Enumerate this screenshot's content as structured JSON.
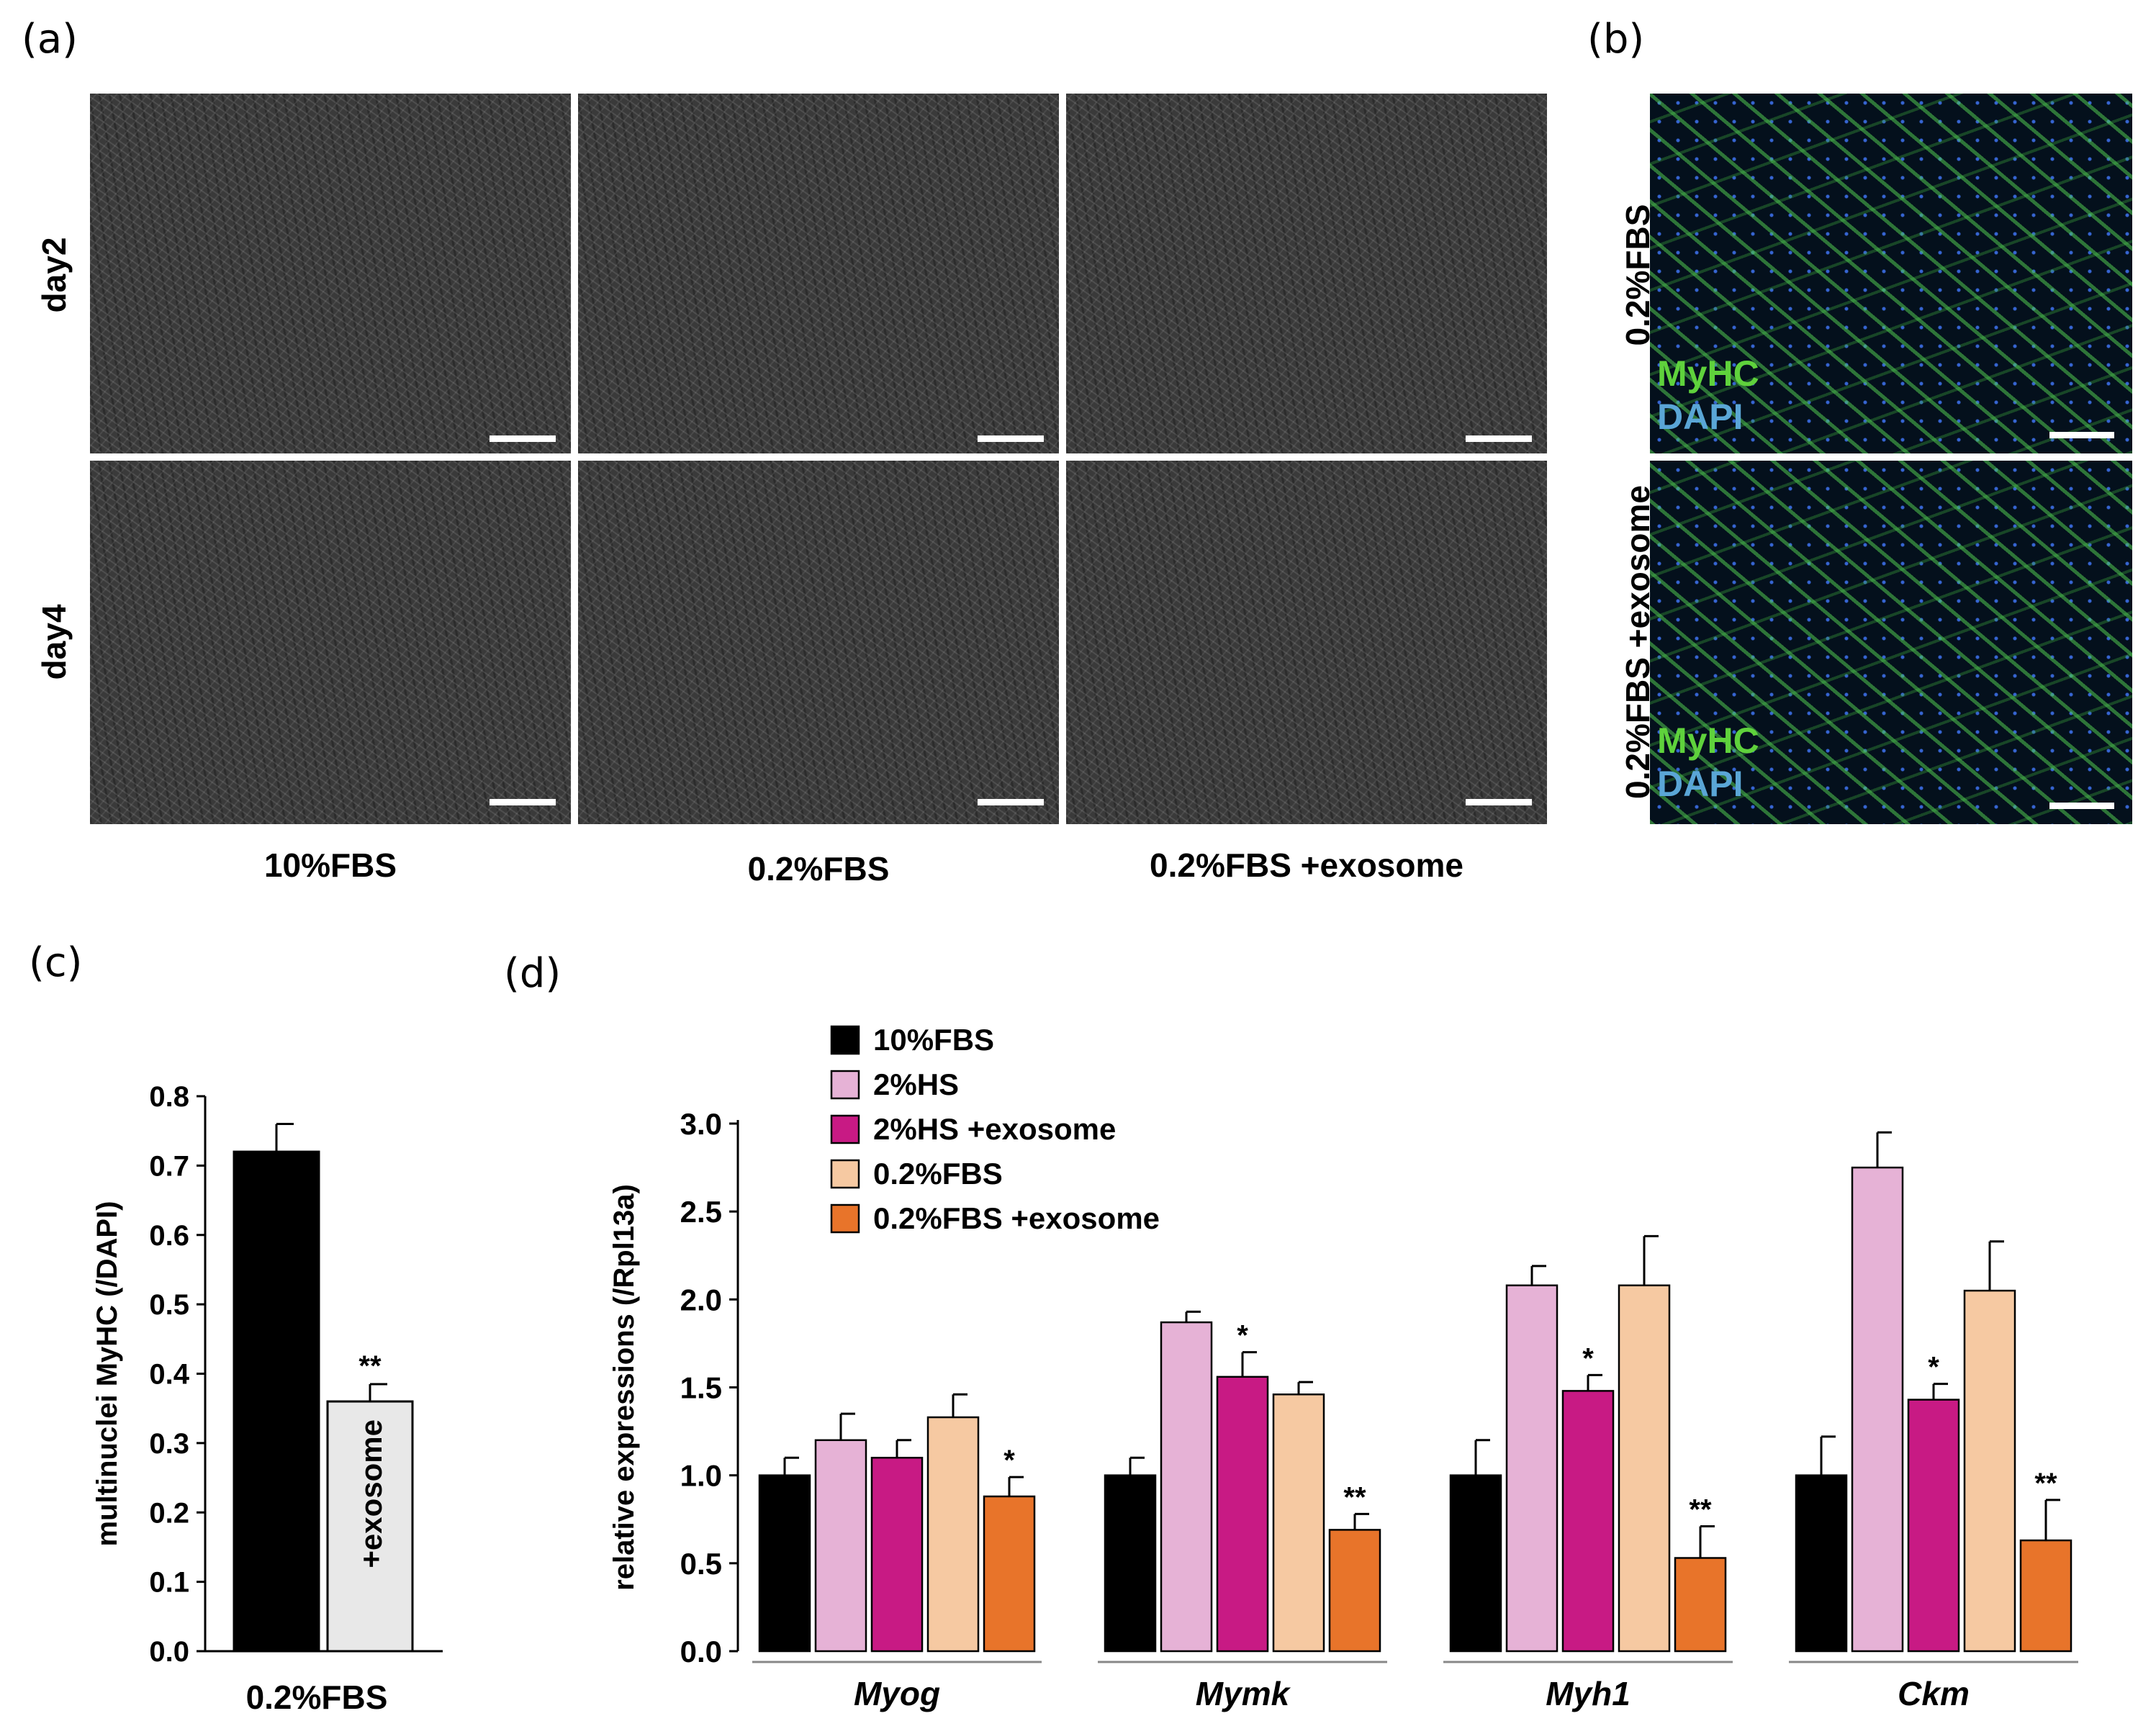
{
  "panels": {
    "a": {
      "label": "(a)",
      "row_labels": [
        "day2",
        "day4"
      ],
      "col_labels": [
        "10%FBS",
        "0.2%FBS",
        "0.2%FBS +exosome"
      ]
    },
    "b": {
      "label": "(b)",
      "row_labels": [
        "0.2%FBS",
        "0.2%FBS +exosome"
      ],
      "stain_green": "MyHC",
      "stain_blue": "DAPI",
      "colors": {
        "green": "#5fd23c",
        "blue": "#5aa6d6"
      }
    },
    "c": {
      "label": "(c)"
    },
    "d": {
      "label": "(d)"
    }
  },
  "chart_data": [
    {
      "type": "bar",
      "panel": "c",
      "ylabel": "multinuclei MyHC (/DAPI)",
      "xlabel": "0.2%FBS",
      "ylim": [
        0,
        0.8
      ],
      "yticks": [
        "0.0",
        "0.1",
        "0.2",
        "0.3",
        "0.4",
        "0.5",
        "0.6",
        "0.7",
        "0.8"
      ],
      "bars": [
        {
          "label": "",
          "value": 0.72,
          "error": 0.04,
          "color": "#000000",
          "sig": ""
        },
        {
          "label": "+exosome",
          "value": 0.36,
          "error": 0.025,
          "color": "#e8e8e8",
          "sig": "**"
        }
      ]
    },
    {
      "type": "bar",
      "panel": "d",
      "ylabel": "relative expressions (/Rpl13a)",
      "ylim": [
        0,
        3.0
      ],
      "yticks": [
        "0.0",
        "0.5",
        "1.0",
        "1.5",
        "2.0",
        "2.5",
        "3.0"
      ],
      "categories": [
        "Myog",
        "Mymk",
        "Myh1",
        "Ckm"
      ],
      "legend_position": "top-left",
      "series": [
        {
          "name": "10%FBS",
          "color": "#000000",
          "values": [
            1.0,
            1.0,
            1.0,
            1.0
          ],
          "errors": [
            0.1,
            0.1,
            0.2,
            0.22
          ],
          "sig": [
            "",
            "",
            "",
            ""
          ]
        },
        {
          "name": "2%HS",
          "color": "#e6b2d6",
          "values": [
            1.2,
            1.87,
            2.08,
            2.75
          ],
          "errors": [
            0.15,
            0.06,
            0.11,
            0.2
          ],
          "sig": [
            "",
            "",
            "",
            ""
          ]
        },
        {
          "name": "2%HS +exosome",
          "color": "#c81a84",
          "values": [
            1.1,
            1.56,
            1.48,
            1.43
          ],
          "errors": [
            0.1,
            0.14,
            0.09,
            0.09
          ],
          "sig": [
            "",
            "*",
            "*",
            "*"
          ]
        },
        {
          "name": "0.2%FBS",
          "color": "#f6c9a2",
          "values": [
            1.33,
            1.46,
            2.08,
            2.05
          ],
          "errors": [
            0.13,
            0.07,
            0.28,
            0.28
          ],
          "sig": [
            "",
            "",
            "",
            ""
          ]
        },
        {
          "name": "0.2%FBS +exosome",
          "color": "#e8742a",
          "values": [
            0.88,
            0.69,
            0.53,
            0.63
          ],
          "errors": [
            0.11,
            0.09,
            0.18,
            0.23
          ],
          "sig": [
            "*",
            "**",
            "**",
            "**"
          ]
        }
      ]
    }
  ]
}
